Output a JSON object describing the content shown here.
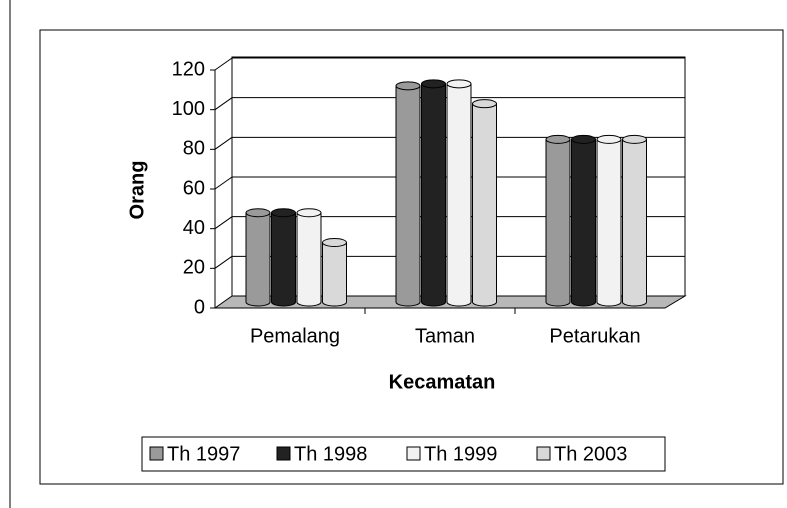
{
  "chart_data": {
    "type": "bar3d",
    "categories": [
      "Pemalang",
      "Taman",
      "Petarukan"
    ],
    "x_label": "Kecamatan",
    "y_label": "Orang",
    "series": [
      {
        "name": "Th 1997",
        "color": "#9a9a9a",
        "values": [
          45,
          109,
          82
        ]
      },
      {
        "name": "Th 1998",
        "color": "#222222",
        "values": [
          45,
          110,
          82
        ]
      },
      {
        "name": "Th 1999",
        "color": "#f2f2f2",
        "values": [
          45,
          110,
          82
        ]
      },
      {
        "name": "Th 2003",
        "color": "#d9d9d9",
        "values": [
          30,
          100,
          82
        ]
      }
    ],
    "ylim": [
      0,
      120
    ],
    "yticks": [
      0,
      20,
      40,
      60,
      80,
      100,
      120
    ],
    "grid": true,
    "legend": "bottom"
  }
}
